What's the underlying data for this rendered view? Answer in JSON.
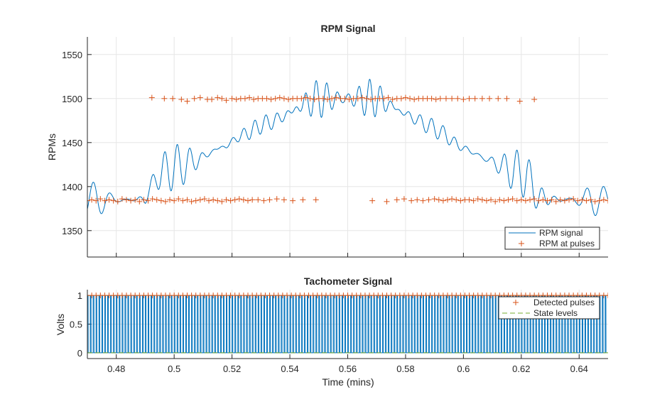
{
  "chart_data": [
    {
      "type": "line",
      "title": "RPM Signal",
      "xlabel": "",
      "ylabel": "RPMs",
      "xlim": [
        0.47,
        0.65
      ],
      "ylim": [
        1320,
        1570
      ],
      "x_ticks": [
        0.48,
        0.5,
        0.52,
        0.54,
        0.56,
        0.58,
        0.6,
        0.62,
        0.64
      ],
      "y_ticks": [
        1350,
        1400,
        1450,
        1500,
        1550
      ],
      "y_tick_labels": [
        "1350",
        "1400",
        "1450",
        "1500",
        "1550"
      ],
      "grid": true,
      "legend_placement": "bottom-right",
      "colors": {
        "signal": "#0072BD",
        "pulses": "#D95319"
      },
      "legend": [
        "RPM signal",
        "RPM at pulses"
      ],
      "series": [
        {
          "name": "RPM signal",
          "style": "line",
          "x": [
            0.47,
            0.474,
            0.478,
            0.482,
            0.486,
            0.49,
            0.494,
            0.498,
            0.502,
            0.506,
            0.51,
            0.514,
            0.518,
            0.522,
            0.526,
            0.53,
            0.534,
            0.538,
            0.542,
            0.546,
            0.55,
            0.554,
            0.558,
            0.562,
            0.566,
            0.57,
            0.574,
            0.578,
            0.582,
            0.586,
            0.59,
            0.594,
            0.598,
            0.602,
            0.606,
            0.61,
            0.614,
            0.618,
            0.622,
            0.626,
            0.63,
            0.634,
            0.638,
            0.642,
            0.646,
            0.65
          ],
          "values": [
            1385,
            1385,
            1385,
            1385,
            1385,
            1386,
            1412,
            1420,
            1423,
            1428,
            1433,
            1442,
            1446,
            1456,
            1462,
            1470,
            1474,
            1480,
            1488,
            1496,
            1500,
            1500,
            1500,
            1500,
            1500,
            1500,
            1494,
            1486,
            1479,
            1472,
            1466,
            1458,
            1447,
            1441,
            1434,
            1428,
            1422,
            1417,
            1412,
            1387,
            1386,
            1385,
            1385,
            1385,
            1385,
            1385
          ]
        },
        {
          "name": "RPM at pulses",
          "style": "marker-plus",
          "x_upper": [
            0.4923,
            0.4966,
            0.4995,
            0.5025,
            0.5045,
            0.507,
            0.509,
            0.5115,
            0.513,
            0.515,
            0.5165,
            0.518,
            0.52,
            0.5215,
            0.523,
            0.5245,
            0.526,
            0.5275,
            0.529,
            0.5305,
            0.532,
            0.5335,
            0.535,
            0.5365,
            0.538,
            0.5395,
            0.541,
            0.5425,
            0.544,
            0.5455,
            0.547,
            0.5485,
            0.55,
            0.5515,
            0.553,
            0.5545,
            0.556,
            0.5575,
            0.559,
            0.5605,
            0.562,
            0.5635,
            0.565,
            0.5665,
            0.568,
            0.5695,
            0.571,
            0.5725,
            0.574,
            0.5755,
            0.577,
            0.5785,
            0.58,
            0.5815,
            0.583,
            0.5845,
            0.586,
            0.5875,
            0.589,
            0.5905,
            0.592,
            0.594,
            0.596,
            0.598,
            0.6,
            0.602,
            0.604,
            0.6065,
            0.609,
            0.612,
            0.615,
            0.6195,
            0.6245
          ],
          "y_upper": [
            1501,
            1500,
            1500,
            1499,
            1497,
            1500,
            1501,
            1499,
            1499,
            1501,
            1500,
            1498,
            1500,
            1499,
            1500,
            1500,
            1501,
            1499,
            1500,
            1500,
            1500,
            1499,
            1500,
            1501,
            1500,
            1499,
            1500,
            1500,
            1500,
            1501,
            1500,
            1499,
            1500,
            1500,
            1499,
            1500,
            1501,
            1500,
            1500,
            1499,
            1500,
            1500,
            1501,
            1500,
            1499,
            1500,
            1500,
            1500,
            1501,
            1499,
            1500,
            1500,
            1501,
            1500,
            1499,
            1500,
            1500,
            1500,
            1500,
            1499,
            1500,
            1500,
            1500,
            1500,
            1499,
            1500,
            1500,
            1500,
            1500,
            1500,
            1500,
            1497,
            1499
          ],
          "x_lower": [
            0.47,
            0.4715,
            0.473,
            0.4745,
            0.476,
            0.4775,
            0.479,
            0.4805,
            0.482,
            0.4835,
            0.485,
            0.4865,
            0.488,
            0.4895,
            0.491,
            0.4925,
            0.494,
            0.4955,
            0.497,
            0.4985,
            0.5,
            0.5015,
            0.503,
            0.5045,
            0.506,
            0.5075,
            0.509,
            0.5105,
            0.512,
            0.5135,
            0.515,
            0.5165,
            0.518,
            0.5195,
            0.521,
            0.5225,
            0.524,
            0.5255,
            0.527,
            0.529,
            0.531,
            0.533,
            0.5355,
            0.538,
            0.541,
            0.5445,
            0.549,
            0.5685,
            0.5735,
            0.577,
            0.5795,
            0.582,
            0.584,
            0.586,
            0.588,
            0.59,
            0.5915,
            0.593,
            0.5945,
            0.596,
            0.5975,
            0.599,
            0.6005,
            0.602,
            0.6035,
            0.605,
            0.6065,
            0.608,
            0.6095,
            0.611,
            0.6125,
            0.614,
            0.6155,
            0.617,
            0.6185,
            0.62,
            0.6215,
            0.623,
            0.6245,
            0.626,
            0.6275,
            0.629,
            0.6305,
            0.632,
            0.6335,
            0.635,
            0.6365,
            0.638,
            0.6395,
            0.641,
            0.6425,
            0.644,
            0.6455,
            0.647,
            0.6485,
            0.65
          ],
          "y_lower": [
            1384,
            1385,
            1384,
            1386,
            1384,
            1385,
            1384,
            1383,
            1386,
            1385,
            1384,
            1385,
            1383,
            1385,
            1384,
            1386,
            1385,
            1384,
            1383,
            1385,
            1384,
            1386,
            1384,
            1385,
            1383,
            1384,
            1385,
            1386,
            1384,
            1385,
            1384,
            1383,
            1385,
            1384,
            1385,
            1386,
            1385,
            1384,
            1385,
            1385,
            1384,
            1385,
            1386,
            1385,
            1384,
            1385,
            1385,
            1384,
            1383,
            1385,
            1386,
            1384,
            1385,
            1384,
            1385,
            1386,
            1385,
            1384,
            1385,
            1386,
            1385,
            1384,
            1385,
            1385,
            1384,
            1386,
            1385,
            1384,
            1385,
            1383,
            1385,
            1384,
            1385,
            1386,
            1384,
            1385,
            1384,
            1385,
            1386,
            1384,
            1385,
            1384,
            1385,
            1383,
            1385,
            1384,
            1385,
            1386,
            1384,
            1385,
            1384,
            1385,
            1383,
            1384,
            1385,
            1384
          ]
        }
      ]
    },
    {
      "type": "line",
      "title": "Tachometer Signal",
      "xlabel": "Time (mins)",
      "ylabel": "Volts",
      "xlim": [
        0.47,
        0.65
      ],
      "ylim": [
        -0.1,
        1.1
      ],
      "x_ticks": [
        0.48,
        0.5,
        0.52,
        0.54,
        0.56,
        0.58,
        0.6,
        0.62,
        0.64
      ],
      "x_tick_labels": [
        "0.48",
        "0.5",
        "0.52",
        "0.54",
        "0.56",
        "0.58",
        "0.6",
        "0.62",
        "0.64"
      ],
      "y_ticks": [
        0,
        0.5,
        1
      ],
      "y_tick_labels": [
        "0",
        "0.5",
        "1"
      ],
      "grid": true,
      "legend_placement": "top-right",
      "colors": {
        "signal": "#0072BD",
        "pulses": "#D95319",
        "state": "#77AC30"
      },
      "legend": [
        "Detected pulses",
        "State levels"
      ],
      "series": [
        {
          "name": "",
          "style": "square-wave",
          "low": 0,
          "high": 1,
          "period": 0.001
        },
        {
          "name": "Detected pulses",
          "style": "marker-plus",
          "y": 1,
          "spacing": 0.0015
        },
        {
          "name": "State levels",
          "style": "dashed-line",
          "levels": [
            0,
            1
          ]
        }
      ]
    }
  ]
}
